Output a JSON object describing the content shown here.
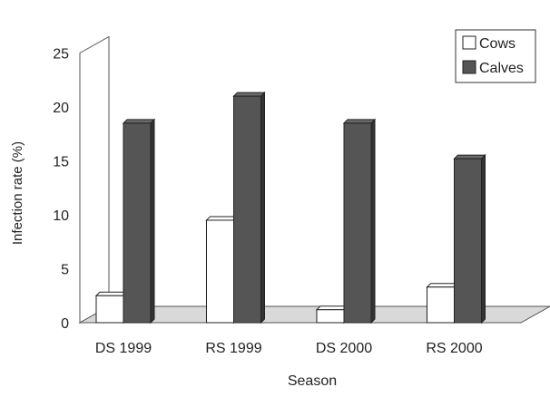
{
  "chart_data": {
    "type": "bar",
    "title": "",
    "xlabel": "Season",
    "ylabel": "Infection rate (%)",
    "ylim": [
      0,
      25
    ],
    "yticks": [
      0,
      5,
      10,
      15,
      20,
      25
    ],
    "categories": [
      "DS 1999",
      "RS 1999",
      "DS 2000",
      "RS 2000"
    ],
    "series": [
      {
        "name": "Cows",
        "values": [
          2.5,
          9.5,
          1.2,
          3.3
        ]
      },
      {
        "name": "Calves",
        "values": [
          18.5,
          21.0,
          18.5,
          15.2
        ]
      }
    ],
    "legend_position": "top-right",
    "three_d": true,
    "colors": {
      "Cows": "#ffffff",
      "Calves": "#555555",
      "floor": "#d9d9d9",
      "outline": "#222222"
    }
  }
}
